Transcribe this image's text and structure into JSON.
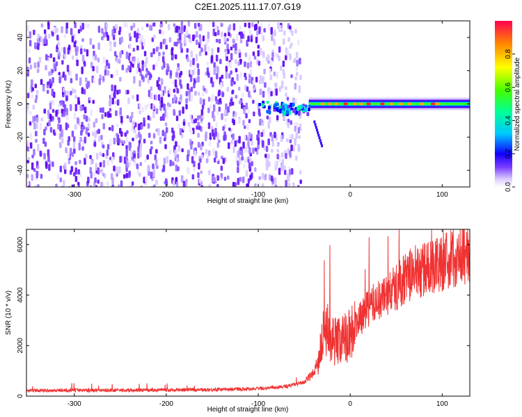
{
  "figure_title": "C2E1.2025.111.17.07.G19",
  "chart_data": [
    {
      "type": "heatmap",
      "title": "C2E1.2025.111.17.07.G19",
      "xlabel": "Height of straight line (km)",
      "ylabel": "Frequency (Hz)",
      "xlim": [
        -352,
        130
      ],
      "ylim": [
        -50,
        50
      ],
      "xticks": [
        -300,
        -200,
        -100,
        0,
        100
      ],
      "yticks": [
        -40,
        -20,
        0,
        20,
        40
      ],
      "colorbar": {
        "label": "Normalized spectral amplitude",
        "range": [
          0.0,
          1.0
        ],
        "ticks": [
          0.0,
          0.2,
          0.4,
          0.6,
          0.8
        ],
        "colormap": "rainbow",
        "colors": [
          "#ffffff",
          "#c9b6ff",
          "#7a3cff",
          "#1000ff",
          "#00e5ff",
          "#00ff66",
          "#ffff00",
          "#ff8800",
          "#ff0040"
        ]
      },
      "features": {
        "noise_region_x": [
          -352,
          -55
        ],
        "signal_line_freq_hz": 0,
        "signal_line_x": [
          -100,
          130
        ],
        "signal_peak_amplitude": 0.95
      },
      "grid": false
    },
    {
      "type": "line",
      "xlabel": "Height of straight line (km)",
      "ylabel": "SNR (10 * v/v)",
      "xlim": [
        -352,
        130
      ],
      "ylim": [
        0,
        6600
      ],
      "xticks": [
        -300,
        -200,
        -100,
        0,
        100
      ],
      "yticks": [
        0,
        2000,
        4000,
        6000
      ],
      "color": "#f03232",
      "series": [
        {
          "x": [
            -352,
            -300,
            -250,
            -200,
            -150,
            -100,
            -70,
            -50,
            -40,
            -35,
            -30,
            -25,
            -20,
            -10,
            0,
            10,
            20,
            30,
            40,
            50,
            60,
            70,
            80,
            90,
            100,
            110,
            120,
            130
          ],
          "values": [
            220,
            240,
            230,
            240,
            260,
            300,
            380,
            550,
            900,
            1400,
            2300,
            2600,
            2200,
            2200,
            2500,
            3000,
            3500,
            3800,
            4000,
            4300,
            4700,
            4900,
            5000,
            5150,
            5300,
            5450,
            5550,
            5650
          ]
        }
      ],
      "grid": false
    }
  ]
}
